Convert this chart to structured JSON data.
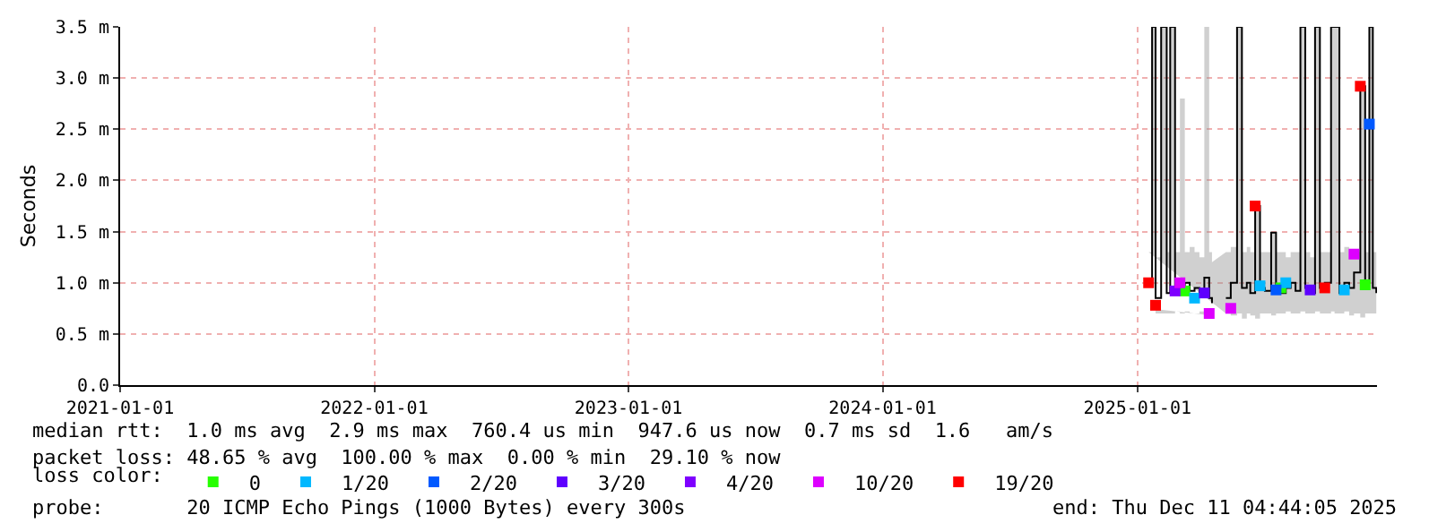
{
  "chart_data": {
    "type": "step",
    "ylabel": "Seconds",
    "legend_title": "loss color:",
    "xlim": [
      "2021-01-01",
      "2025-12-11"
    ],
    "xticks": [
      "2021-01-01",
      "2022-01-01",
      "2023-01-01",
      "2024-01-01",
      "2025-01-01"
    ],
    "ylim": [
      0,
      3.5
    ],
    "yticks": [
      {
        "value": 0,
        "label": "0.0"
      },
      {
        "value": 0.5,
        "label": "0.5 m"
      },
      {
        "value": 1,
        "label": "1.0 m"
      },
      {
        "value": 1.5,
        "label": "1.5 m"
      },
      {
        "value": 2,
        "label": "2.0 m"
      },
      {
        "value": 2.5,
        "label": "2.5 m"
      },
      {
        "value": 3,
        "label": "3.0 m"
      },
      {
        "value": 3.5,
        "label": "3.5 m"
      }
    ],
    "grid": true,
    "legend": "bottom",
    "marker": "none",
    "series": [
      {
        "color": "#000000",
        "x": [
          "2025-01-17",
          "2025-01-22",
          "2025-01-27",
          "2025-02-04",
          "2025-02-09",
          "2025-02-12",
          "2025-02-17",
          "2025-02-24",
          "2025-03-03",
          "2025-03-10",
          "2025-03-17",
          "2025-03-24",
          "2025-03-31",
          "2025-04-07",
          "2025-04-14",
          "2025-04-18",
          "2025-04-28",
          "2025-05-08",
          "2025-05-15",
          "2025-05-24",
          "2025-05-31",
          "2025-06-07",
          "2025-06-12",
          "2025-06-19",
          "2025-06-26",
          "2025-07-03",
          "2025-07-12",
          "2025-07-19",
          "2025-07-26",
          "2025-08-02",
          "2025-08-09",
          "2025-08-16",
          "2025-08-23",
          "2025-08-30",
          "2025-09-06",
          "2025-09-13",
          "2025-09-20",
          "2025-09-27",
          "2025-10-06",
          "2025-10-11",
          "2025-10-18",
          "2025-10-25",
          "2025-11-01",
          "2025-11-08",
          "2025-11-17",
          "2025-11-24",
          "2025-11-30",
          "2025-12-05",
          "2025-12-10"
        ],
        "values": [
          1.0,
          3.5,
          0.85,
          3.5,
          3.5,
          0.9,
          3.5,
          0.95,
          0.9,
          1.0,
          0.92,
          0.95,
          0.9,
          1.05,
          0.85,
          0.8,
          null,
          0.85,
          1.0,
          3.5,
          0.95,
          1.0,
          0.9,
          1.75,
          0.95,
          0.92,
          1.49,
          0.95,
          0.9,
          0.95,
          1.0,
          0.92,
          3.5,
          0.95,
          0.9,
          3.5,
          0.95,
          1.0,
          3.5,
          3.5,
          0.9,
          1.0,
          0.95,
          1.1,
          2.92,
          1.0,
          3.5,
          0.95,
          0.9
        ],
        "lower": [
          0.75,
          0.8,
          0.7,
          0.7,
          0.7,
          0.7,
          0.7,
          0.72,
          0.7,
          0.72,
          0.7,
          0.7,
          0.72,
          0.7,
          0.65,
          0.68,
          null,
          0.7,
          0.68,
          0.7,
          0.65,
          0.7,
          0.68,
          0.65,
          0.7,
          0.7,
          0.68,
          0.7,
          0.7,
          0.72,
          0.7,
          0.7,
          0.72,
          0.7,
          0.7,
          0.72,
          0.7,
          0.7,
          0.72,
          0.7,
          0.7,
          0.72,
          0.68,
          0.7,
          0.66,
          0.7,
          0.7,
          0.7,
          0.72
        ],
        "upper": [
          1.3,
          3.5,
          1.25,
          3.5,
          3.5,
          1.3,
          3.5,
          1.3,
          2.8,
          1.3,
          1.35,
          1.3,
          1.25,
          3.5,
          1.3,
          1.2,
          null,
          1.3,
          1.35,
          3.5,
          1.3,
          1.35,
          1.3,
          1.75,
          1.3,
          1.3,
          1.49,
          1.3,
          1.3,
          1.25,
          1.3,
          1.3,
          3.5,
          1.3,
          1.25,
          3.5,
          1.3,
          1.3,
          3.5,
          3.5,
          1.3,
          1.35,
          1.3,
          1.3,
          2.92,
          1.3,
          3.5,
          1.3,
          1.25
        ]
      },
      {
        "type": "scatter",
        "marker": "square",
        "name": "0",
        "color": "#26ff00",
        "x": [
          "2025-03-10",
          "2025-07-26",
          "2025-11-24"
        ],
        "values": [
          0.92,
          0.95,
          0.98
        ]
      },
      {
        "type": "scatter",
        "marker": "square",
        "name": "1/20",
        "color": "#00b8ff",
        "x": [
          "2025-03-24",
          "2025-06-26",
          "2025-08-02",
          "2025-10-25"
        ],
        "values": [
          0.85,
          0.97,
          1.0,
          0.93
        ]
      },
      {
        "type": "scatter",
        "marker": "square",
        "name": "2/20",
        "color": "#0059ff",
        "x": [
          "2025-07-19",
          "2025-11-30"
        ],
        "values": [
          0.93,
          2.55
        ]
      },
      {
        "type": "scatter",
        "marker": "square",
        "name": "3/20",
        "color": "#5e00ff",
        "x": [
          "2025-04-07",
          "2025-09-06"
        ],
        "values": [
          0.9,
          0.93
        ]
      },
      {
        "type": "scatter",
        "marker": "square",
        "name": "4/20",
        "color": "#7e00ff",
        "x": [
          "2025-02-24"
        ],
        "values": [
          0.92
        ]
      },
      {
        "type": "scatter",
        "marker": "square",
        "name": "10/20",
        "color": "#dd00ff",
        "x": [
          "2025-03-03",
          "2025-04-14",
          "2025-05-15",
          "2025-11-08"
        ],
        "values": [
          1.0,
          0.7,
          0.75,
          1.28
        ]
      },
      {
        "type": "scatter",
        "marker": "square",
        "name": "19/20",
        "color": "#ff0000",
        "x": [
          "2025-01-17",
          "2025-01-27",
          "2025-06-19",
          "2025-09-27",
          "2025-11-17"
        ],
        "values": [
          1.0,
          0.78,
          1.75,
          0.95,
          2.92
        ]
      }
    ],
    "annotations": [
      "median rtt:  1.0 ms avg  2.9 ms max  760.4 us min  947.6 us now  0.7 ms sd  1.6   am/s",
      "packet loss: 48.65 % avg  100.00 % max  0.00 % min  29.10 % now",
      "probe:       20 ICMP Echo Pings (1000 Bytes) every 300s",
      "end: Thu Dec 11 04:44:05 2025"
    ]
  }
}
